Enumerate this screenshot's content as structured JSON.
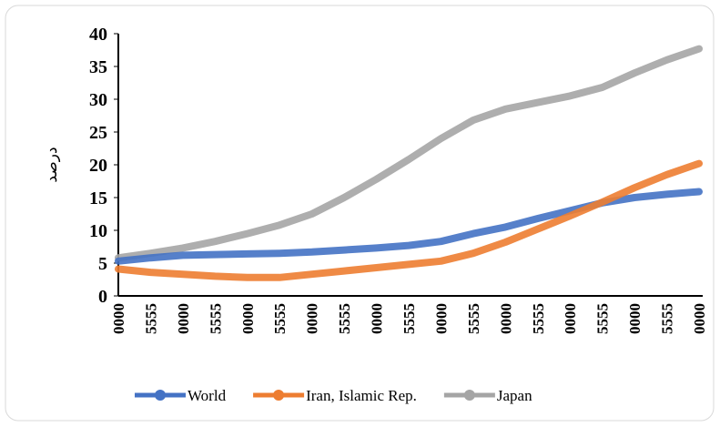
{
  "chart_data": {
    "type": "line",
    "y_label": "درصد",
    "categories": [
      "0000",
      "5555",
      "0000",
      "5555",
      "0000",
      "5555",
      "0000",
      "5555",
      "0000",
      "5555",
      "0000",
      "5555",
      "0000",
      "5555",
      "0000",
      "5555",
      "0000",
      "5555",
      "0000"
    ],
    "series": [
      {
        "name": "World",
        "color": "#4472c4",
        "values": [
          5.3,
          5.8,
          6.2,
          6.3,
          6.4,
          6.5,
          6.7,
          7.0,
          7.3,
          7.7,
          8.3,
          9.5,
          10.5,
          11.8,
          13,
          14.2,
          15,
          15.5,
          15.9
        ]
      },
      {
        "name": "Iran, Islamic Rep.",
        "color": "#ed7d31",
        "values": [
          4.1,
          3.6,
          3.3,
          3.0,
          2.8,
          2.8,
          3.3,
          3.8,
          4.3,
          4.8,
          5.3,
          6.5,
          8.2,
          10.2,
          12.2,
          14.3,
          16.5,
          18.5,
          20.2
        ]
      },
      {
        "name": "Japan",
        "color": "#a5a5a5",
        "values": [
          5.8,
          6.5,
          7.3,
          8.3,
          9.5,
          10.8,
          12.5,
          15,
          17.8,
          20.8,
          24,
          26.8,
          28.5,
          29.5,
          30.5,
          31.8,
          34,
          36,
          37.7
        ]
      }
    ],
    "ylim": [
      0,
      40
    ],
    "yticks": [
      0,
      5,
      10,
      15,
      20,
      25,
      30,
      35,
      40
    ],
    "legend": "bottom"
  }
}
